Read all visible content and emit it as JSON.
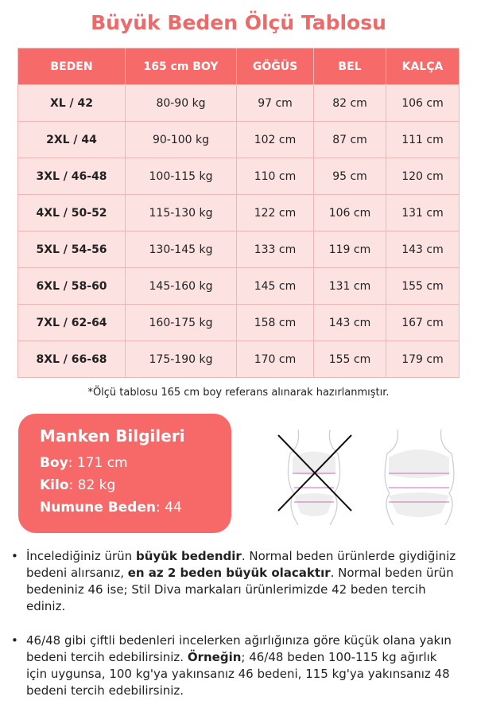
{
  "title": "Büyük Beden Ölçü Tablosu",
  "table": {
    "headers": [
      "BEDEN",
      "165 cm BOY",
      "GÖĞÜS",
      "BEL",
      "KALÇA"
    ],
    "rows": [
      [
        "XL / 42",
        "80-90 kg",
        "97 cm",
        "82 cm",
        "106 cm"
      ],
      [
        "2XL / 44",
        "90-100 kg",
        "102 cm",
        "87 cm",
        "111 cm"
      ],
      [
        "3XL / 46-48",
        "100-115 kg",
        "110 cm",
        "95 cm",
        "120 cm"
      ],
      [
        "4XL / 50-52",
        "115-130 kg",
        "122 cm",
        "106 cm",
        "131 cm"
      ],
      [
        "5XL / 54-56",
        "130-145 kg",
        "133 cm",
        "119 cm",
        "143 cm"
      ],
      [
        "6XL / 58-60",
        "145-160 kg",
        "145 cm",
        "131 cm",
        "155 cm"
      ],
      [
        "7XL / 62-64",
        "160-175 kg",
        "158 cm",
        "143 cm",
        "167 cm"
      ],
      [
        "8XL / 66-68",
        "175-190 kg",
        "170 cm",
        "155 cm",
        "179 cm"
      ]
    ]
  },
  "note": "*Ölçü tablosu 165 cm boy referans alınarak hazırlanmıştır.",
  "manken": {
    "title": "Manken Bilgileri",
    "rows": [
      {
        "label": "Boy",
        "value": ": 171 cm"
      },
      {
        "label": "Kilo",
        "value": ": 82 kg"
      },
      {
        "label": "Numune Beden",
        "value": ": 44"
      }
    ]
  },
  "bullets": [
    {
      "parts": [
        "İncelediğiniz ürün ",
        "büyük bedendir",
        ". Normal beden ürünlerde giydiğiniz bedeni alırsanız, ",
        "en az 2 beden büyük olacaktır",
        ". Normal beden ürün bedeniniz 46 ise; Stil Diva markaları ürünlerimizde 42 beden tercih ediniz."
      ]
    },
    {
      "parts": [
        "46/48 gibi çiftli bedenleri incelerken ağırlığınıza göre küçük olana yakın bedeni tercih edebilirsiniz. ",
        "Örneğin",
        "; 46/48 beden 100-115 kg ağırlık için uygunsa, 100 kg'ya yakınsanız 46 bedeni, 115 kg'ya yakınsanız 48 bedeni tercih edebilirsiniz."
      ]
    }
  ],
  "colors": {
    "accent": "#f76a6a",
    "row": "#fde2e2"
  }
}
